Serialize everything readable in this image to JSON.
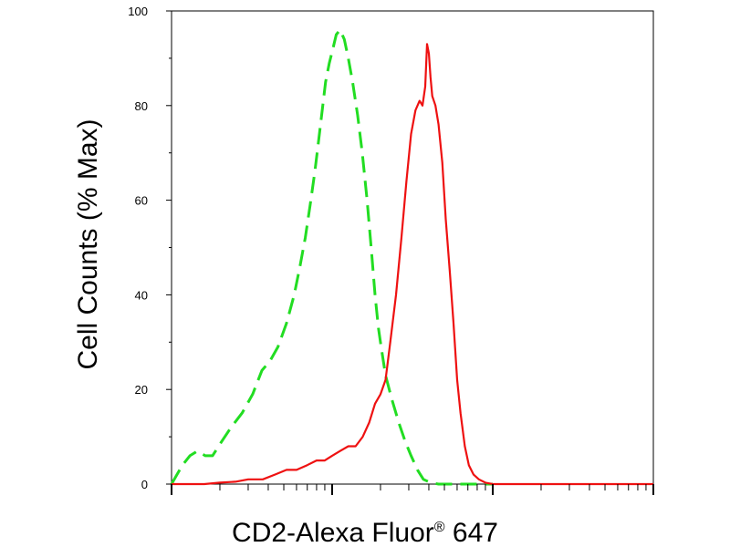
{
  "chart_data": {
    "type": "line",
    "title": "",
    "xlabel": "CD2-Alexa Fluor",
    "xlabel_mark": "®",
    "xlabel_suffix": " 647",
    "ylabel": "Cell Counts (% Max)",
    "xscale": "log",
    "xlim": [
      1,
      1000
    ],
    "ylim": [
      0,
      100
    ],
    "yticks": [
      0,
      20,
      40,
      60,
      80,
      100
    ],
    "ytick_labels": [
      "0",
      "20",
      "40",
      "60",
      "80",
      "100"
    ],
    "xtick_labels": [],
    "grid": false,
    "legend": "none",
    "series": [
      {
        "color": "#22dd22",
        "dash": true,
        "x": [
          1.0,
          1.08,
          1.17,
          1.3,
          1.45,
          1.62,
          1.8,
          2.05,
          2.35,
          2.75,
          3.2,
          3.65,
          4.1,
          4.6,
          5.2,
          5.8,
          6.3,
          6.8,
          7.3,
          7.8,
          8.2,
          8.6,
          9.1,
          9.6,
          10.1,
          10.6,
          11.2,
          11.9,
          12.6,
          13.4,
          14.4,
          15.4,
          16.5,
          17.6,
          18.5,
          19.4,
          20.2,
          21.5,
          23.5,
          26,
          28.5,
          31,
          34,
          37,
          41,
          46,
          52,
          60,
          70,
          85,
          100
        ],
        "y": [
          0,
          2,
          4,
          6,
          7,
          6,
          6,
          9,
          12,
          15,
          19,
          24,
          26,
          29,
          34,
          40,
          46,
          52,
          59,
          66,
          72,
          78,
          85,
          89,
          92,
          95,
          96,
          94,
          90,
          85,
          78,
          70,
          60,
          49,
          40,
          33,
          29,
          23,
          18,
          13,
          9,
          6,
          3,
          1,
          0.3,
          0,
          0,
          0,
          0,
          0,
          0
        ]
      },
      {
        "color": "#ee1111",
        "dash": false,
        "x": [
          1.0,
          1.3,
          1.6,
          2.0,
          2.5,
          3.0,
          3.7,
          4.4,
          5.2,
          6.0,
          7.0,
          8.0,
          9.0,
          10.0,
          11.2,
          12.6,
          14.0,
          15.5,
          17.0,
          18.5,
          20.0,
          21.5,
          23,
          25,
          27,
          29,
          31,
          33,
          35,
          36.5,
          38,
          39,
          40,
          41,
          42,
          44,
          46,
          48.5,
          51,
          54,
          57,
          60,
          63,
          67,
          71,
          76,
          82,
          90,
          100,
          120,
          150,
          200,
          300,
          500,
          1000
        ],
        "y": [
          0,
          0,
          0,
          0.3,
          0.5,
          1,
          1,
          2,
          3,
          3,
          4,
          5,
          5,
          6,
          7,
          8,
          8,
          10,
          13,
          17,
          19,
          22,
          30,
          40,
          52,
          64,
          74,
          79,
          81,
          80,
          84,
          93,
          91,
          86,
          82,
          80,
          76,
          68,
          56,
          45,
          34,
          22,
          15,
          8,
          4,
          2,
          1,
          0.3,
          0,
          0,
          0,
          0,
          0,
          0,
          0
        ]
      }
    ]
  }
}
